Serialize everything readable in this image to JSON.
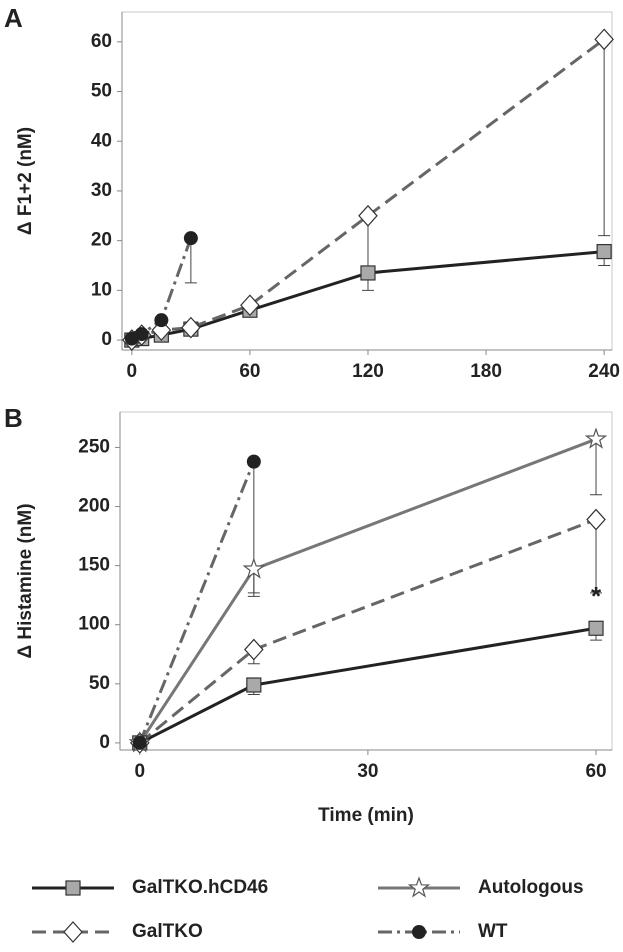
{
  "chart_data": [
    {
      "type": "line",
      "panel_label": "A",
      "ylabel": "Δ F1+2 (nM)",
      "xlim": [
        -5,
        244
      ],
      "xticks": [
        0,
        60,
        120,
        180,
        240
      ],
      "ylim": [
        -2,
        66
      ],
      "yticks": [
        0,
        10,
        20,
        30,
        40,
        50,
        60
      ],
      "series": [
        {
          "color": "#222222",
          "marker": "square",
          "dash": "solid",
          "x": [
            0,
            5,
            15,
            30,
            60,
            120,
            240
          ],
          "values": [
            0,
            0.3,
            1,
            2.2,
            6,
            13.5,
            17.8
          ],
          "errors": [
            null,
            null,
            null,
            null,
            null,
            3.5,
            2.8
          ]
        },
        {
          "color": "#666666",
          "marker": "diamond",
          "dash": "dashed",
          "x": [
            0,
            5,
            15,
            30,
            60,
            120,
            240
          ],
          "values": [
            0,
            1,
            2,
            2.5,
            7,
            25,
            60.5
          ],
          "errors": [
            null,
            null,
            null,
            null,
            null,
            11.5,
            39.5
          ]
        },
        {
          "color": "#666666",
          "marker": "circle",
          "dash": "dashdot",
          "x": [
            0,
            5,
            15,
            30
          ],
          "values": [
            0.3,
            1.2,
            4,
            20.5
          ],
          "errors": [
            null,
            null,
            null,
            9
          ]
        }
      ]
    },
    {
      "type": "line",
      "panel_label": "B",
      "ylabel": "Δ Histamine (nM)",
      "xlabel": "Time (min)",
      "xlim": [
        -2.6,
        62.1
      ],
      "xticks": [
        0,
        30,
        60
      ],
      "ylim": [
        -6,
        280
      ],
      "yticks": [
        0,
        50,
        100,
        150,
        200,
        250
      ],
      "annotation": "*",
      "series": [
        {
          "name": "GalTKO.hCD46",
          "color": "#222222",
          "marker": "square",
          "dash": "solid",
          "x": [
            0,
            15,
            60
          ],
          "values": [
            0,
            49,
            97
          ],
          "errors": [
            null,
            8,
            10
          ]
        },
        {
          "name": "GalTKO",
          "color": "#666666",
          "marker": "diamond",
          "dash": "dashed",
          "x": [
            0,
            15,
            60
          ],
          "values": [
            0,
            79,
            189
          ],
          "errors": [
            null,
            12,
            62
          ]
        },
        {
          "name": "Autologous",
          "color": "#777777",
          "marker": "star",
          "dash": "solid",
          "x": [
            0,
            15,
            60
          ],
          "values": [
            0,
            147,
            257
          ],
          "errors": [
            null,
            23,
            47
          ]
        },
        {
          "name": "WT",
          "color": "#666666",
          "marker": "circle",
          "dash": "dashdot",
          "x": [
            0,
            15
          ],
          "values": [
            0,
            238
          ],
          "errors": [
            null,
            111
          ]
        }
      ]
    }
  ]
}
